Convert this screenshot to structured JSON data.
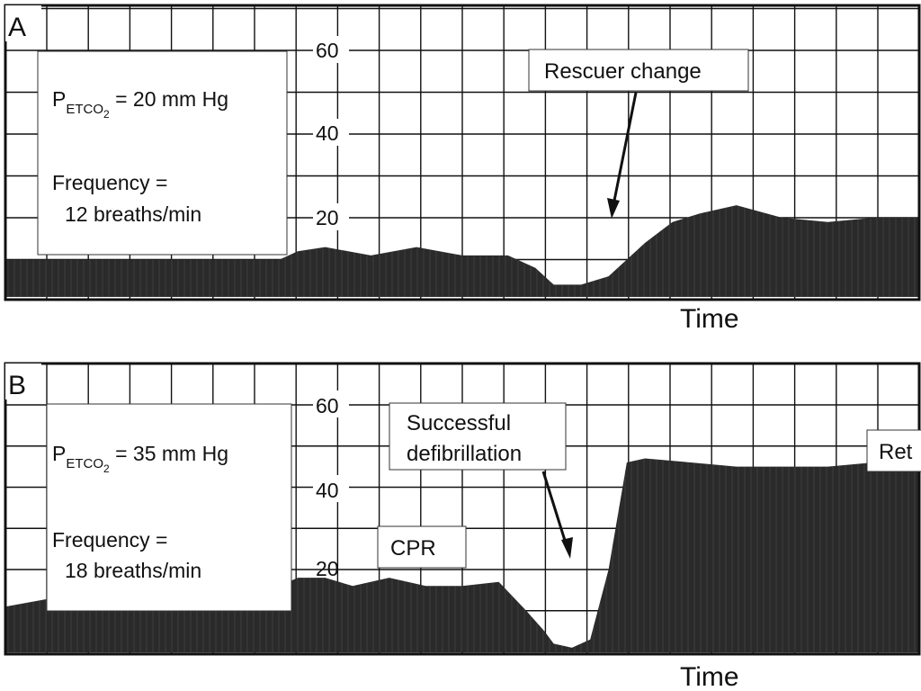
{
  "figure": {
    "panels": [
      {
        "letter": "A",
        "info": {
          "petco2_symbol": "P",
          "petco2_sub": "ETCO",
          "petco2_sub2": "2",
          "petco2_value": " = 20 mm Hg",
          "frequency_line1": "Frequency =",
          "frequency_line2": "12 breaths/min"
        },
        "yticks": [
          "60",
          "40",
          "20"
        ],
        "xlabel": "Time",
        "annotations": [
          {
            "text_lines": [
              "Rescuer change"
            ]
          }
        ]
      },
      {
        "letter": "B",
        "info": {
          "petco2_symbol": "P",
          "petco2_sub": "ETCO",
          "petco2_sub2": "2",
          "petco2_value": " = 35 mm Hg",
          "frequency_line1": "Frequency =",
          "frequency_line2": "18 breaths/min"
        },
        "yticks": [
          "60",
          "40",
          "20"
        ],
        "xlabel": "Time",
        "annotations": [
          {
            "text_lines": [
              "CPR"
            ]
          },
          {
            "text_lines": [
              "Successful",
              "defibrillation"
            ]
          },
          {
            "text_lines": [
              "Ret"
            ]
          }
        ]
      }
    ]
  },
  "colors": {
    "waveform": "#2a2a2a",
    "grid": "#111111",
    "background": "#ffffff"
  },
  "chart_data": [
    {
      "type": "area",
      "title": "A",
      "xlabel": "Time",
      "ylabel": "",
      "ylim": [
        0,
        65
      ],
      "yticks": [
        20,
        40,
        60
      ],
      "grid": true,
      "series": [
        {
          "x": [
            0,
            0.05,
            0.1,
            0.15,
            0.2,
            0.25,
            0.3,
            0.32,
            0.35,
            0.4,
            0.45,
            0.5,
            0.55,
            0.58,
            0.6,
            0.63,
            0.66,
            0.7,
            0.73,
            0.76,
            0.8,
            0.85,
            0.9,
            0.95,
            1.0
          ],
          "values": [
            10,
            10,
            10,
            10,
            10,
            10,
            10,
            12,
            13,
            11,
            13,
            11,
            11,
            8,
            4,
            4,
            6,
            14,
            19,
            21,
            23,
            20,
            19,
            20,
            20
          ]
        }
      ]
    },
    {
      "type": "area",
      "title": "B",
      "xlabel": "Time",
      "ylabel": "",
      "ylim": [
        0,
        65
      ],
      "yticks": [
        20,
        40,
        60
      ],
      "grid": true,
      "series": [
        {
          "x": [
            0,
            0.05,
            0.1,
            0.2,
            0.3,
            0.32,
            0.35,
            0.38,
            0.42,
            0.46,
            0.5,
            0.54,
            0.57,
            0.59,
            0.6,
            0.62,
            0.64,
            0.66,
            0.68,
            0.7,
            0.75,
            0.8,
            0.85,
            0.9,
            0.95,
            1.0
          ],
          "values": [
            11,
            13,
            14,
            15,
            16,
            18,
            18,
            16,
            18,
            16,
            16,
            17,
            10,
            5,
            2,
            1,
            3,
            20,
            46,
            47,
            46,
            45,
            45,
            45,
            46,
            46
          ]
        }
      ]
    }
  ]
}
